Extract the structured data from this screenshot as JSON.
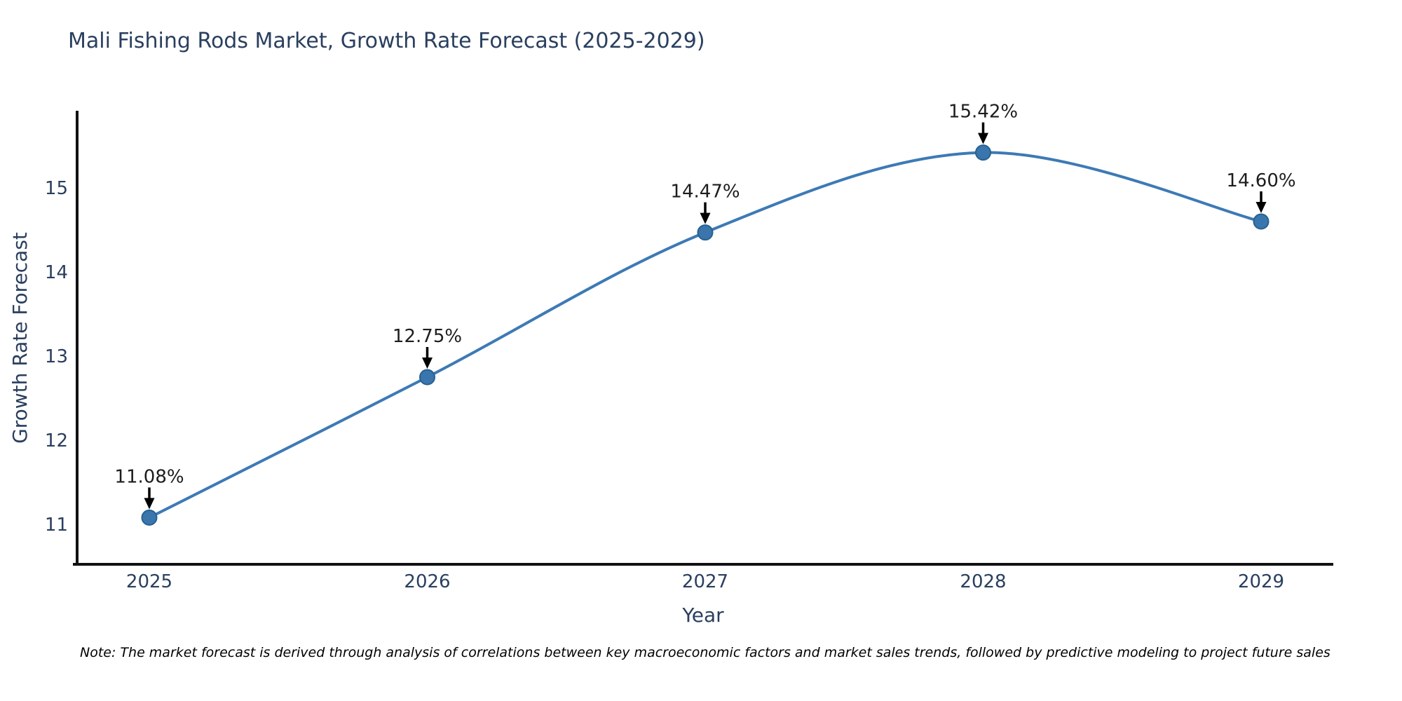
{
  "chart_data": {
    "type": "line",
    "line_shape": "spline",
    "title": "Mali Fishing Rods Market, Growth Rate Forecast (2025-2029)",
    "xlabel": "Year",
    "ylabel": "Growth Rate Forecast",
    "note": "Note: The market forecast is derived through analysis of correlations between key macroeconomic factors and market sales trends, followed by predictive modeling to project future sales",
    "categories": [
      "2025",
      "2026",
      "2027",
      "2028",
      "2029"
    ],
    "values": [
      11.08,
      12.75,
      14.47,
      15.42,
      14.6
    ],
    "point_labels": [
      "11.08%",
      "12.75%",
      "14.47%",
      "15.42%",
      "14.60%"
    ],
    "yticks": [
      "11",
      "12",
      "13",
      "14",
      "15"
    ],
    "ylim": [
      10.53,
      15.9
    ],
    "grid": false,
    "legend_position": "none",
    "colors": {
      "line": "#3d7ab5",
      "marker_fill": "#3a76ad",
      "marker_edge": "#27618f",
      "arrow": "#000000",
      "text": "#2a3f5f",
      "annotation_text": "#1d1d1d",
      "axis_line": "#111111",
      "background": "#ffffff"
    }
  }
}
